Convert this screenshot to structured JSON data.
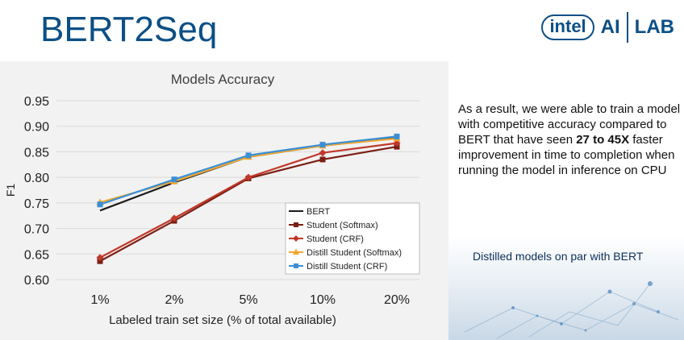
{
  "slide": {
    "title": "BERT2Seq",
    "logo_intel": "intel",
    "logo_ai": "AI",
    "logo_lab": "LAB",
    "text_before": "As a result, we were able to train a model with competitive accuracy compared to BERT that have seen ",
    "text_bold": "27 to 45X",
    "text_after": " faster improvement in time to completion when running the model in inference on CPU",
    "bottom_caption": "Distilled models on par with BERT"
  },
  "colors": {
    "title": "#0b4f86",
    "bert": "#1a1a1a",
    "student_softmax": "#7b1e14",
    "student_crf": "#c0392b",
    "distill_softmax": "#f0a830",
    "distill_crf": "#3a8fd6"
  },
  "chart_data": {
    "type": "line",
    "title": "Models Accuracy",
    "xlabel": "Labeled train set size (% of total available)",
    "ylabel": "F1",
    "categories": [
      "1%",
      "2%",
      "5%",
      "10%",
      "20%"
    ],
    "ylim": [
      0.6,
      0.95
    ],
    "yticks": [
      "0.60",
      "0.65",
      "0.70",
      "0.75",
      "0.80",
      "0.85",
      "0.90",
      "0.95"
    ],
    "grid": true,
    "legend_position": "bottom-right",
    "series": [
      {
        "name": "BERT",
        "marker": "none",
        "values": [
          0.735,
          0.79,
          0.84,
          0.862,
          0.877
        ]
      },
      {
        "name": "Student (Softmax)",
        "marker": "square",
        "values": [
          0.636,
          0.715,
          0.798,
          0.835,
          0.86
        ]
      },
      {
        "name": "Student (CRF)",
        "marker": "diamond",
        "values": [
          0.643,
          0.72,
          0.8,
          0.848,
          0.867
        ]
      },
      {
        "name": "Distill Student (Softmax)",
        "marker": "triangle",
        "values": [
          0.751,
          0.792,
          0.84,
          0.862,
          0.876
        ]
      },
      {
        "name": "Distill Student (CRF)",
        "marker": "square",
        "values": [
          0.747,
          0.796,
          0.843,
          0.864,
          0.88
        ]
      }
    ]
  }
}
